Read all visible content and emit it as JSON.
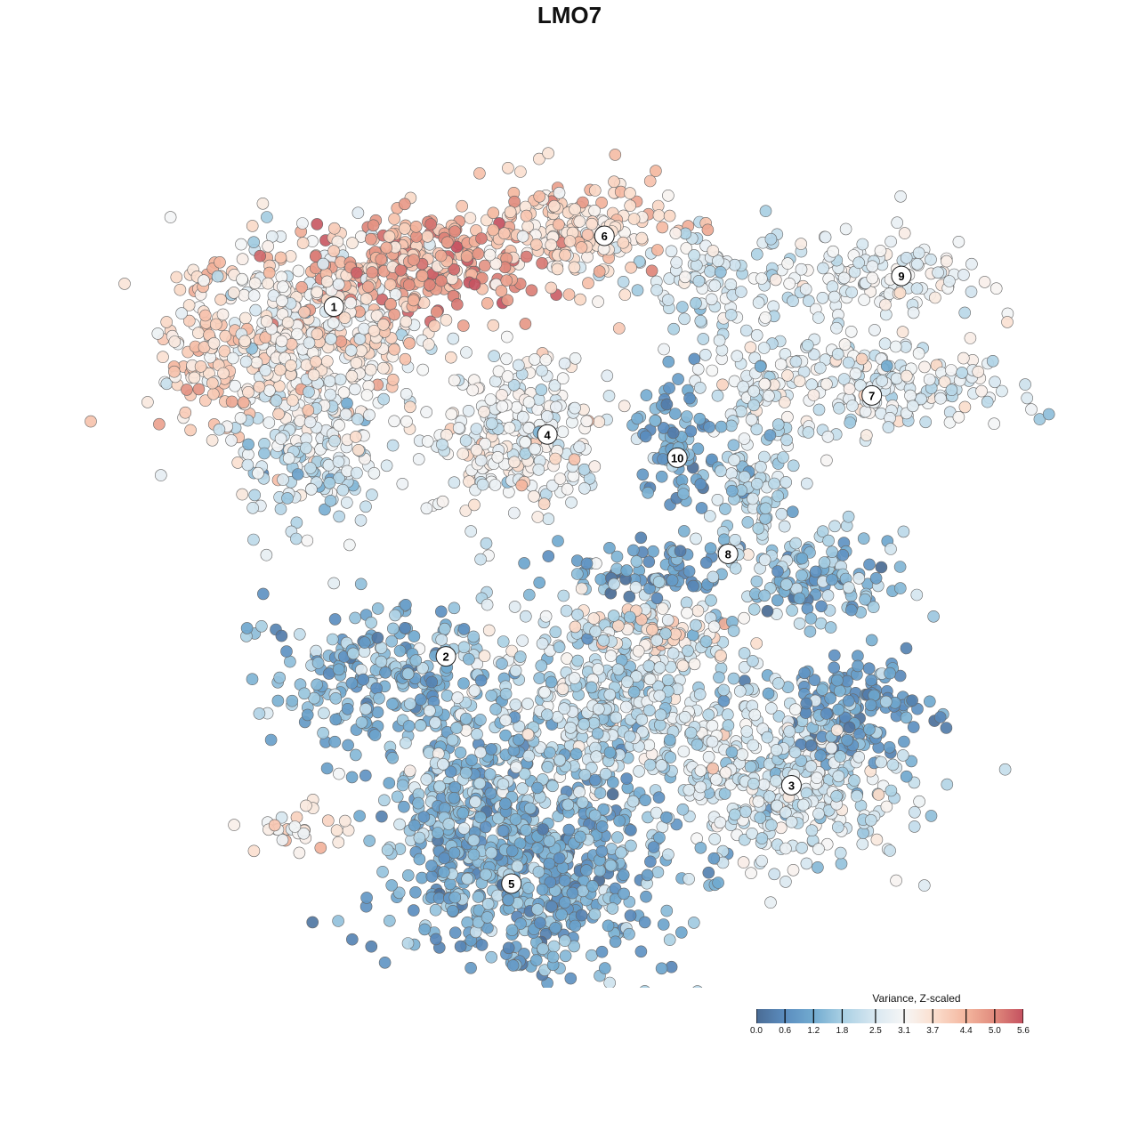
{
  "chart_data": {
    "type": "scatter",
    "title": "LMO7",
    "xlabel": "",
    "ylabel": "",
    "xlim": [
      -40,
      40
    ],
    "ylim": [
      -40,
      40
    ],
    "grid": false,
    "legend": {
      "title": "Variance, Z-scaled",
      "placement": "bottom-right",
      "range": [
        0,
        5.6
      ],
      "ticks": [
        "0.0",
        "0.6",
        "1.2",
        "1.8",
        "2.5",
        "3.1",
        "3.7",
        "4.4",
        "5.0",
        "5.6"
      ],
      "tick_values": [
        0,
        0.6,
        1.2,
        1.8,
        2.5,
        3.1,
        3.7,
        4.4,
        5.0,
        5.6
      ],
      "colors": [
        {
          "v": 0.0,
          "c": "#4a6b94"
        },
        {
          "v": 0.6,
          "c": "#5b8dbf"
        },
        {
          "v": 1.2,
          "c": "#72abd0"
        },
        {
          "v": 1.8,
          "c": "#a8cfe3"
        },
        {
          "v": 2.5,
          "c": "#d9e8f1"
        },
        {
          "v": 3.1,
          "c": "#f6f6f6"
        },
        {
          "v": 3.7,
          "c": "#fbe0d0"
        },
        {
          "v": 4.4,
          "c": "#f4b69e"
        },
        {
          "v": 5.0,
          "c": "#e08a7c"
        },
        {
          "v": 5.6,
          "c": "#c4505f"
        }
      ]
    },
    "cluster_labels": [
      {
        "label": "1",
        "x": -24.4,
        "y": 25.3
      },
      {
        "label": "2",
        "x": -13.8,
        "y": -7.8
      },
      {
        "label": "3",
        "x": 18.9,
        "y": -20.0
      },
      {
        "label": "4",
        "x": -4.2,
        "y": 13.2
      },
      {
        "label": "5",
        "x": -7.6,
        "y": -29.3
      },
      {
        "label": "6",
        "x": 1.2,
        "y": 32.0
      },
      {
        "label": "7",
        "x": 26.5,
        "y": 16.9
      },
      {
        "label": "8",
        "x": 12.9,
        "y": 1.9
      },
      {
        "label": "9",
        "x": 29.3,
        "y": 28.2
      },
      {
        "label": "10",
        "x": 8.1,
        "y": 11.0
      }
    ],
    "point_groups": [
      {
        "cluster": "1",
        "x": -27.4,
        "y": 22.3,
        "sx": 5.9,
        "sy": 5.1,
        "n": 500,
        "value_mean": 3.3,
        "value_sd": 0.6
      },
      {
        "cluster": "1",
        "x": -16.4,
        "y": 29.1,
        "sx": 5.0,
        "sy": 2.5,
        "n": 250,
        "value_mean": 4.6,
        "value_sd": 0.5
      },
      {
        "cluster": "6",
        "x": -2.1,
        "y": 32.4,
        "sx": 5.0,
        "sy": 2.5,
        "n": 200,
        "value_mean": 3.8,
        "value_sd": 0.5
      },
      {
        "cluster": "1",
        "x": -36.6,
        "y": 20.6,
        "sx": 1.7,
        "sy": 4.2,
        "n": 60,
        "value_mean": 4.0,
        "value_sd": 0.4
      },
      {
        "cluster": "1",
        "x": -26.5,
        "y": 10.5,
        "sx": 3.4,
        "sy": 3.0,
        "n": 120,
        "value_mean": 2.2,
        "value_sd": 0.5
      },
      {
        "cluster": "4",
        "x": -7.2,
        "y": 13.1,
        "sx": 4.2,
        "sy": 4.2,
        "n": 250,
        "value_mean": 3.0,
        "value_sd": 0.5
      },
      {
        "cluster": "6",
        "x": 11.4,
        "y": 27.4,
        "sx": 4.2,
        "sy": 2.1,
        "n": 100,
        "value_mean": 2.3,
        "value_sd": 0.5
      },
      {
        "cluster": "9",
        "x": 27.4,
        "y": 28.2,
        "sx": 5.0,
        "sy": 2.1,
        "n": 120,
        "value_mean": 2.8,
        "value_sd": 0.4
      },
      {
        "cluster": "7",
        "x": 24.8,
        "y": 18.1,
        "sx": 7.6,
        "sy": 2.5,
        "n": 250,
        "value_mean": 2.7,
        "value_sd": 0.5
      },
      {
        "cluster": "10",
        "x": 8.0,
        "y": 12.2,
        "sx": 2.1,
        "sy": 3.0,
        "n": 80,
        "value_mean": 1.1,
        "value_sd": 0.4
      },
      {
        "cluster": "8",
        "x": 15.6,
        "y": 7.2,
        "sx": 2.1,
        "sy": 3.4,
        "n": 100,
        "value_mean": 2.0,
        "value_sd": 0.5
      },
      {
        "cluster": "8",
        "x": 21.5,
        "y": -0.4,
        "sx": 3.4,
        "sy": 2.1,
        "n": 120,
        "value_mean": 1.4,
        "value_sd": 0.6
      },
      {
        "cluster": "8",
        "x": 6.3,
        "y": 0.4,
        "sx": 4.2,
        "sy": 1.7,
        "n": 80,
        "value_mean": 1.0,
        "value_sd": 0.5
      },
      {
        "cluster": "2",
        "x": -20.6,
        "y": -9.7,
        "sx": 5.0,
        "sy": 3.4,
        "n": 220,
        "value_mean": 1.3,
        "value_sd": 0.5
      },
      {
        "cluster": "3",
        "x": 1.3,
        "y": -11.4,
        "sx": 7.6,
        "sy": 5.0,
        "n": 500,
        "value_mean": 2.2,
        "value_sd": 0.6
      },
      {
        "cluster": "3",
        "x": 6.3,
        "y": -5.5,
        "sx": 3.4,
        "sy": 1.3,
        "n": 60,
        "value_mean": 3.8,
        "value_sd": 0.5
      },
      {
        "cluster": "3",
        "x": 18.1,
        "y": -19.8,
        "sx": 5.9,
        "sy": 3.8,
        "n": 350,
        "value_mean": 2.4,
        "value_sd": 0.5
      },
      {
        "cluster": "3",
        "x": 24.8,
        "y": -13.1,
        "sx": 3.4,
        "sy": 2.5,
        "n": 150,
        "value_mean": 0.9,
        "value_sd": 0.4
      },
      {
        "cluster": "5",
        "x": -5.5,
        "y": -28.2,
        "sx": 6.7,
        "sy": 5.0,
        "n": 600,
        "value_mean": 1.2,
        "value_sd": 0.5
      },
      {
        "cluster": "5",
        "x": -12.2,
        "y": -21.5,
        "sx": 3.4,
        "sy": 4.2,
        "n": 200,
        "value_mean": 1.5,
        "value_sd": 0.5
      },
      {
        "cluster": "2",
        "x": -26.5,
        "y": -24.0,
        "sx": 2.5,
        "sy": 1.3,
        "n": 30,
        "value_mean": 3.3,
        "value_sd": 0.6
      }
    ]
  }
}
